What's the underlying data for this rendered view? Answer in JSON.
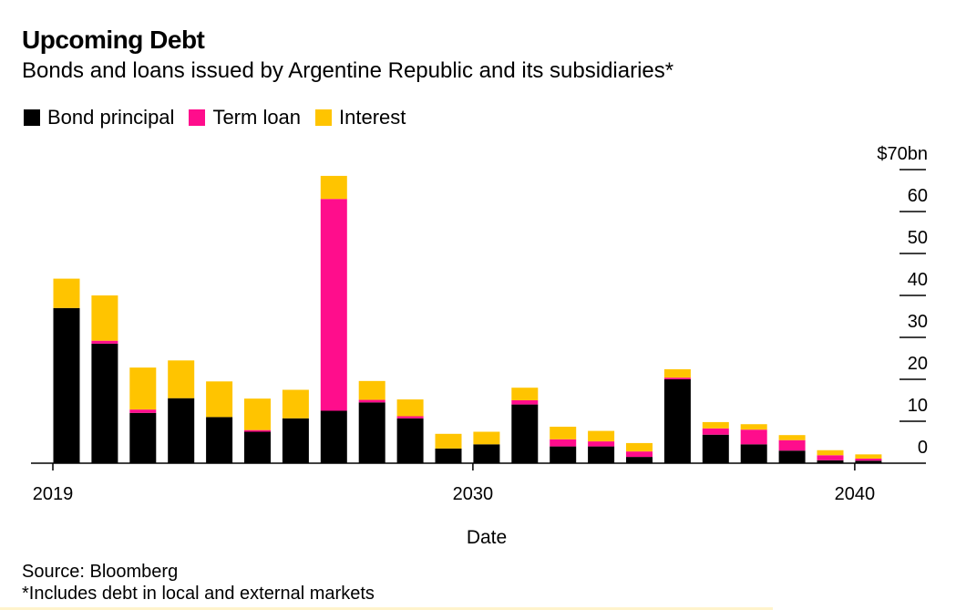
{
  "chart_data": {
    "type": "bar",
    "stacked": true,
    "title": "Upcoming Debt",
    "subtitle": "Bonds and loans issued by Argentine Republic and its subsidiaries*",
    "xlabel": "Date",
    "ylabel": "",
    "ylim": [
      0,
      70
    ],
    "y_ticks": [
      "$70bn",
      "60",
      "50",
      "40",
      "30",
      "20",
      "10",
      "0"
    ],
    "y_tick_values": [
      70,
      60,
      50,
      40,
      30,
      20,
      10,
      0
    ],
    "x_tick_labels": [
      "2019",
      "2030",
      "2040"
    ],
    "x_tick_years": [
      2019,
      2030,
      2040
    ],
    "categories": [
      "2019",
      "2020",
      "2021",
      "2022",
      "2023",
      "2024",
      "2025",
      "2026",
      "2027",
      "2028",
      "2029",
      "2030",
      "2031",
      "2032",
      "2033",
      "2034",
      "2035",
      "2036",
      "2037",
      "2038",
      "2039",
      "2040"
    ],
    "series": [
      {
        "name": "Bond principal",
        "color": "#000000",
        "values": [
          37,
          28.5,
          12,
          15.5,
          11,
          7.5,
          10.7,
          12.5,
          14.5,
          10.7,
          3.5,
          4.5,
          14,
          4,
          4,
          1.5,
          20,
          6.8,
          4.5,
          3,
          0.7,
          0.6
        ]
      },
      {
        "name": "Term loan",
        "color": "#ff0d8c",
        "values": [
          0,
          0.7,
          0.8,
          0,
          0,
          0.4,
          0,
          50.5,
          0.6,
          0.5,
          0,
          0,
          1,
          1.7,
          1.2,
          1.3,
          0.4,
          1.5,
          3.5,
          2.5,
          1.2,
          0.5
        ]
      },
      {
        "name": "Interest",
        "color": "#ffc400",
        "values": [
          7,
          10.8,
          10,
          9,
          8.5,
          7.5,
          6.8,
          5.5,
          4.5,
          4,
          3.5,
          3,
          3,
          3,
          2.5,
          2,
          2,
          1.5,
          1.3,
          1.2,
          1.2,
          1
        ]
      }
    ],
    "legend_position": "top-left",
    "grid": false
  },
  "legend": [
    {
      "label": "Bond principal",
      "color": "#000000"
    },
    {
      "label": "Term loan",
      "color": "#ff0d8c"
    },
    {
      "label": "Interest",
      "color": "#ffc400"
    }
  ],
  "footer": {
    "source": "Source: Bloomberg",
    "note": "*Includes debt in local and external markets"
  }
}
